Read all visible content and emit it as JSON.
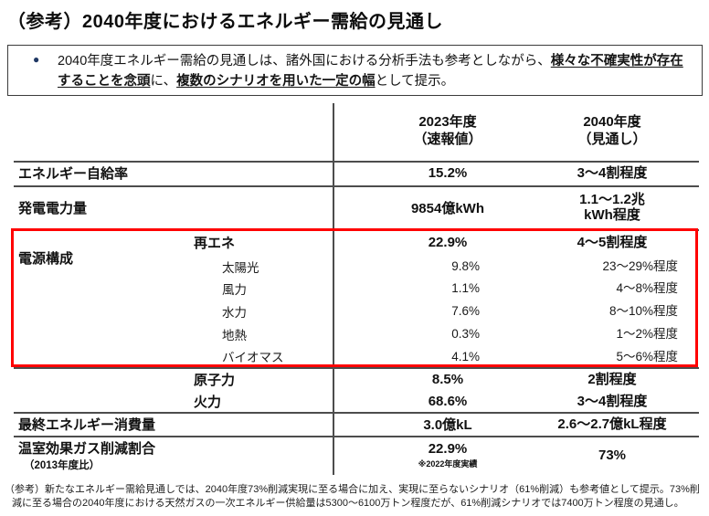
{
  "page": {
    "title": "（参考）2040年度におけるエネルギー需給の見通し"
  },
  "notice": {
    "bullet_icon": "●",
    "lines": [
      [
        {
          "t": "2040年度エネルギー需給の見通しは、諸外国における分析手法も参考としながら、",
          "u": false
        },
        {
          "t": "様々な不確実性が存在",
          "u": true
        }
      ],
      [
        {
          "t": "することを念頭",
          "u": true
        },
        {
          "t": "に、",
          "u": false
        },
        {
          "t": "複数のシナリオを用いた一定の幅",
          "u": true
        },
        {
          "t": "として提示。",
          "u": false
        }
      ]
    ]
  },
  "table": {
    "columns": [
      {
        "title": "2023年度",
        "subtitle": "（速報値）"
      },
      {
        "title": "2040年度",
        "subtitle": "（見通し）"
      }
    ],
    "group_label": "電源構成",
    "rows": [
      {
        "type": "main",
        "label": "エネルギー自給率",
        "v2023": "15.2%",
        "v2040": "3～4割程度"
      },
      {
        "type": "main",
        "label": "発電電力量",
        "v2023": "9854億kWh",
        "v2040": "1.1～1.2兆\nkWh程度"
      },
      {
        "type": "mid",
        "label": "再エネ",
        "v2023": "22.9%",
        "v2040": "4～5割程度"
      },
      {
        "type": "sub",
        "label": "太陽光",
        "v2023": "9.8%",
        "v2040": "23～29%程度"
      },
      {
        "type": "sub",
        "label": "風力",
        "v2023": "1.1%",
        "v2040": "4～8%程度"
      },
      {
        "type": "sub",
        "label": "水力",
        "v2023": "7.6%",
        "v2040": "8～10%程度"
      },
      {
        "type": "sub",
        "label": "地熱",
        "v2023": "0.3%",
        "v2040": "1～2%程度"
      },
      {
        "type": "sub",
        "label": "バイオマス",
        "v2023": "4.1%",
        "v2040": "5～6%程度"
      },
      {
        "type": "mid",
        "label": "原子力",
        "v2023": "8.5%",
        "v2040": "2割程度"
      },
      {
        "type": "mid",
        "label": "火力",
        "v2023": "68.6%",
        "v2040": "3～4割程度"
      },
      {
        "type": "main",
        "label": "最終エネルギー消費量",
        "v2023": "3.0億kL",
        "v2040": "2.6～2.7億kL程度"
      },
      {
        "type": "main",
        "label": "温室効果ガス削減割合",
        "label2": "（2013年度比）",
        "v2023": "22.9%",
        "note2023": "※2022年度実績",
        "v2040": "73%"
      }
    ]
  },
  "footnote": {
    "lines": [
      "（参考）新たなエネルギー需給見通しでは、2040年度73%削減実現に至る場合に加え、実現に至らないシナリオ（61%削減）も参考値として提示。73%削",
      "減に至る場合の2040年度における天然ガスの一次エネルギー供給量は5300～6100万トン程度だが、61%削減シナリオでは7400万トン程度の見通し。"
    ]
  },
  "colors": {
    "highlight_red": "#ff0000",
    "bullet_navy": "#1f3864",
    "rule_gray": "#4d4d4d"
  }
}
